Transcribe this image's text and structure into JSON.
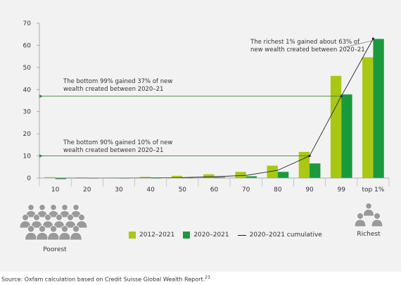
{
  "chart_data": {
    "type": "bar",
    "categories": [
      "10",
      "20",
      "30",
      "40",
      "50",
      "60",
      "70",
      "80",
      "90",
      "99",
      "top 1%"
    ],
    "ylim": [
      0,
      70
    ],
    "yticks": [
      0,
      10,
      20,
      30,
      40,
      50,
      60,
      70
    ],
    "series": [
      {
        "name": "2012–2021",
        "color": "#a8c813",
        "values": [
          0.4,
          0.3,
          0.2,
          0.5,
          1.0,
          1.7,
          2.8,
          5.6,
          11.8,
          46.2,
          54.6
        ]
      },
      {
        "name": "2020–2021",
        "color": "#1b9a3c",
        "values": [
          -0.5,
          0.1,
          0.1,
          0.1,
          0.2,
          0.4,
          0.8,
          2.8,
          6.6,
          37.8,
          62.9
        ]
      }
    ],
    "line_series": {
      "name": "2020–2021 cumulative",
      "color": "#222222",
      "values": [
        0.0,
        0.0,
        0.0,
        0.1,
        0.2,
        0.6,
        1.2,
        3.5,
        10.0,
        37.0,
        63.0
      ]
    },
    "guide_color": "#2e8b2e",
    "annotations": [
      {
        "lines": [
          "The richest 1% gained about 63% of",
          "new wealth created between 2020–21"
        ]
      },
      {
        "lines": [
          "The bottom 99% gained 37% of new",
          "wealth created between 2020–21"
        ],
        "y": 37
      },
      {
        "lines": [
          "The bottom 90% gained 10% of new",
          "wealth created between 2020–21"
        ],
        "y": 10
      }
    ]
  },
  "people": {
    "left_label": "Poorest",
    "right_label": "Richest",
    "icon_color": "#9a9a9a"
  },
  "source": "Source: Oxfam calculation based on Credit Suisse Global Wealth Report.",
  "source_ref": "23"
}
